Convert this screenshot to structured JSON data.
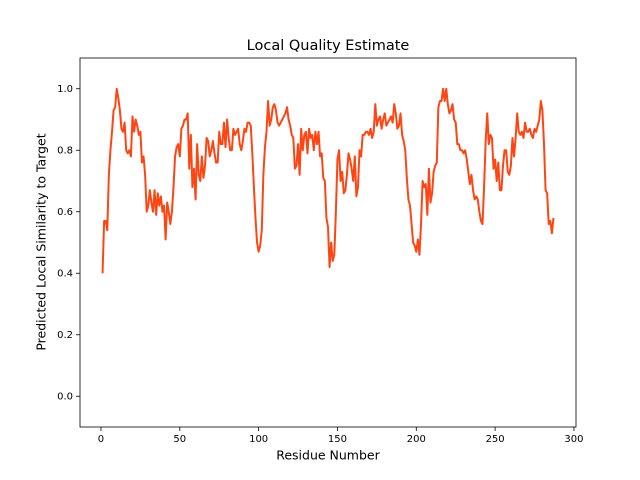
{
  "chart_data": {
    "type": "line",
    "title": "Local Quality Estimate",
    "xlabel": "Residue Number",
    "ylabel": "Predicted Local Similarity to Target",
    "color": "#ff4513",
    "xlim": [
      -13.3,
      301.3
    ],
    "ylim": [
      -0.1,
      1.1
    ],
    "xticks": [
      0,
      50,
      100,
      150,
      200,
      250,
      300
    ],
    "yticks": [
      {
        "value": 0,
        "label": "0.0"
      },
      0.2,
      0.4,
      0.6,
      0.8,
      {
        "value": 1,
        "label": "1.0"
      }
    ],
    "x": [
      1,
      2,
      3,
      4,
      5,
      6,
      7,
      8,
      9,
      10,
      11,
      12,
      13,
      14,
      15,
      16,
      17,
      18,
      19,
      20,
      21,
      22,
      23,
      24,
      25,
      26,
      27,
      28,
      29,
      30,
      31,
      32,
      33,
      34,
      35,
      36,
      37,
      38,
      39,
      40,
      41,
      42,
      43,
      44,
      45,
      46,
      47,
      48,
      49,
      50,
      51,
      52,
      53,
      54,
      55,
      56,
      57,
      58,
      59,
      60,
      61,
      62,
      63,
      64,
      65,
      66,
      67,
      68,
      69,
      70,
      71,
      72,
      73,
      74,
      75,
      76,
      77,
      78,
      79,
      80,
      81,
      82,
      83,
      84,
      85,
      86,
      87,
      88,
      89,
      90,
      91,
      92,
      93,
      94,
      95,
      96,
      97,
      98,
      99,
      100,
      101,
      102,
      103,
      104,
      105,
      106,
      107,
      108,
      109,
      110,
      111,
      112,
      113,
      114,
      115,
      116,
      117,
      118,
      119,
      120,
      121,
      122,
      123,
      124,
      125,
      126,
      127,
      128,
      129,
      130,
      131,
      132,
      133,
      134,
      135,
      136,
      137,
      138,
      139,
      140,
      141,
      142,
      143,
      144,
      145,
      146,
      147,
      148,
      149,
      150,
      151,
      152,
      153,
      154,
      155,
      156,
      157,
      158,
      159,
      160,
      161,
      162,
      163,
      164,
      165,
      166,
      167,
      168,
      169,
      170,
      171,
      172,
      173,
      174,
      175,
      176,
      177,
      178,
      179,
      180,
      181,
      182,
      183,
      184,
      185,
      186,
      187,
      188,
      189,
      190,
      191,
      192,
      193,
      194,
      195,
      196,
      197,
      198,
      199,
      200,
      201,
      202,
      203,
      204,
      205,
      206,
      207,
      208,
      209,
      210,
      211,
      212,
      213,
      214,
      215,
      216,
      217,
      218,
      219,
      220,
      221,
      222,
      223,
      224,
      225,
      226,
      227,
      228,
      229,
      230,
      231,
      232,
      233,
      234,
      235,
      236,
      237,
      238,
      239,
      240,
      241,
      242,
      243,
      244,
      245,
      246,
      247,
      248,
      249,
      250,
      251,
      252,
      253,
      254,
      255,
      256,
      257,
      258,
      259,
      260,
      261,
      262,
      263,
      264,
      265,
      266,
      267,
      268,
      269,
      270,
      271,
      272,
      273,
      274,
      275,
      276,
      277,
      278,
      279,
      280,
      281,
      282,
      283,
      284,
      285,
      286,
      287
    ],
    "values": [
      0.4,
      0.57,
      0.57,
      0.54,
      0.72,
      0.8,
      0.86,
      0.93,
      0.94,
      1.0,
      0.97,
      0.93,
      0.87,
      0.86,
      0.89,
      0.8,
      0.79,
      0.8,
      0.78,
      0.91,
      0.86,
      0.9,
      0.88,
      0.85,
      0.86,
      0.76,
      0.78,
      0.72,
      0.6,
      0.62,
      0.67,
      0.63,
      0.6,
      0.67,
      0.59,
      0.66,
      0.62,
      0.65,
      0.6,
      0.62,
      0.51,
      0.63,
      0.6,
      0.56,
      0.6,
      0.68,
      0.78,
      0.81,
      0.82,
      0.78,
      0.87,
      0.88,
      0.9,
      0.9,
      0.92,
      0.74,
      0.85,
      0.68,
      0.74,
      0.64,
      0.82,
      0.72,
      0.7,
      0.78,
      0.71,
      0.75,
      0.84,
      0.83,
      0.78,
      0.8,
      0.83,
      0.79,
      0.76,
      0.76,
      0.86,
      0.82,
      0.82,
      0.89,
      0.81,
      0.9,
      0.84,
      0.8,
      0.8,
      0.87,
      0.85,
      0.86,
      0.87,
      0.82,
      0.8,
      0.83,
      0.87,
      0.86,
      0.89,
      0.89,
      0.88,
      0.79,
      0.68,
      0.58,
      0.5,
      0.47,
      0.49,
      0.54,
      0.72,
      0.81,
      0.86,
      0.96,
      0.88,
      0.9,
      0.94,
      0.95,
      0.93,
      0.89,
      0.88,
      0.89,
      0.9,
      0.91,
      0.92,
      0.94,
      0.9,
      0.88,
      0.85,
      0.84,
      0.74,
      0.75,
      0.82,
      0.72,
      0.87,
      0.8,
      0.85,
      0.86,
      0.79,
      0.87,
      0.84,
      0.85,
      0.8,
      0.86,
      0.82,
      0.86,
      0.78,
      0.79,
      0.71,
      0.7,
      0.58,
      0.55,
      0.42,
      0.5,
      0.44,
      0.46,
      0.6,
      0.77,
      0.8,
      0.7,
      0.73,
      0.66,
      0.67,
      0.72,
      0.79,
      0.77,
      0.74,
      0.7,
      0.78,
      0.65,
      0.68,
      0.8,
      0.78,
      0.85,
      0.85,
      0.86,
      0.86,
      0.85,
      0.87,
      0.84,
      0.86,
      0.95,
      0.88,
      0.9,
      0.91,
      0.87,
      0.9,
      0.92,
      0.88,
      0.89,
      0.9,
      0.91,
      0.89,
      0.95,
      0.92,
      0.87,
      0.88,
      0.92,
      0.85,
      0.83,
      0.8,
      0.71,
      0.64,
      0.62,
      0.56,
      0.5,
      0.49,
      0.47,
      0.51,
      0.46,
      0.56,
      0.7,
      0.68,
      0.69,
      0.59,
      0.74,
      0.63,
      0.66,
      0.73,
      0.75,
      0.76,
      0.94,
      0.96,
      0.96,
      1.0,
      0.96,
      1.0,
      0.95,
      0.92,
      0.93,
      0.95,
      0.9,
      0.89,
      0.82,
      0.82,
      0.8,
      0.8,
      0.79,
      0.8,
      0.77,
      0.73,
      0.69,
      0.72,
      0.67,
      0.64,
      0.65,
      0.64,
      0.6,
      0.57,
      0.56,
      0.68,
      0.83,
      0.92,
      0.82,
      0.85,
      0.84,
      0.74,
      0.77,
      0.7,
      0.76,
      0.67,
      0.67,
      0.75,
      0.8,
      0.8,
      0.73,
      0.72,
      0.75,
      0.84,
      0.78,
      0.84,
      0.92,
      0.86,
      0.85,
      0.86,
      0.84,
      0.89,
      0.86,
      0.86,
      0.87,
      0.85,
      0.84,
      0.87,
      0.86,
      0.88,
      0.9,
      0.96,
      0.93,
      0.82,
      0.67,
      0.66,
      0.56,
      0.57,
      0.53,
      0.58
    ]
  }
}
